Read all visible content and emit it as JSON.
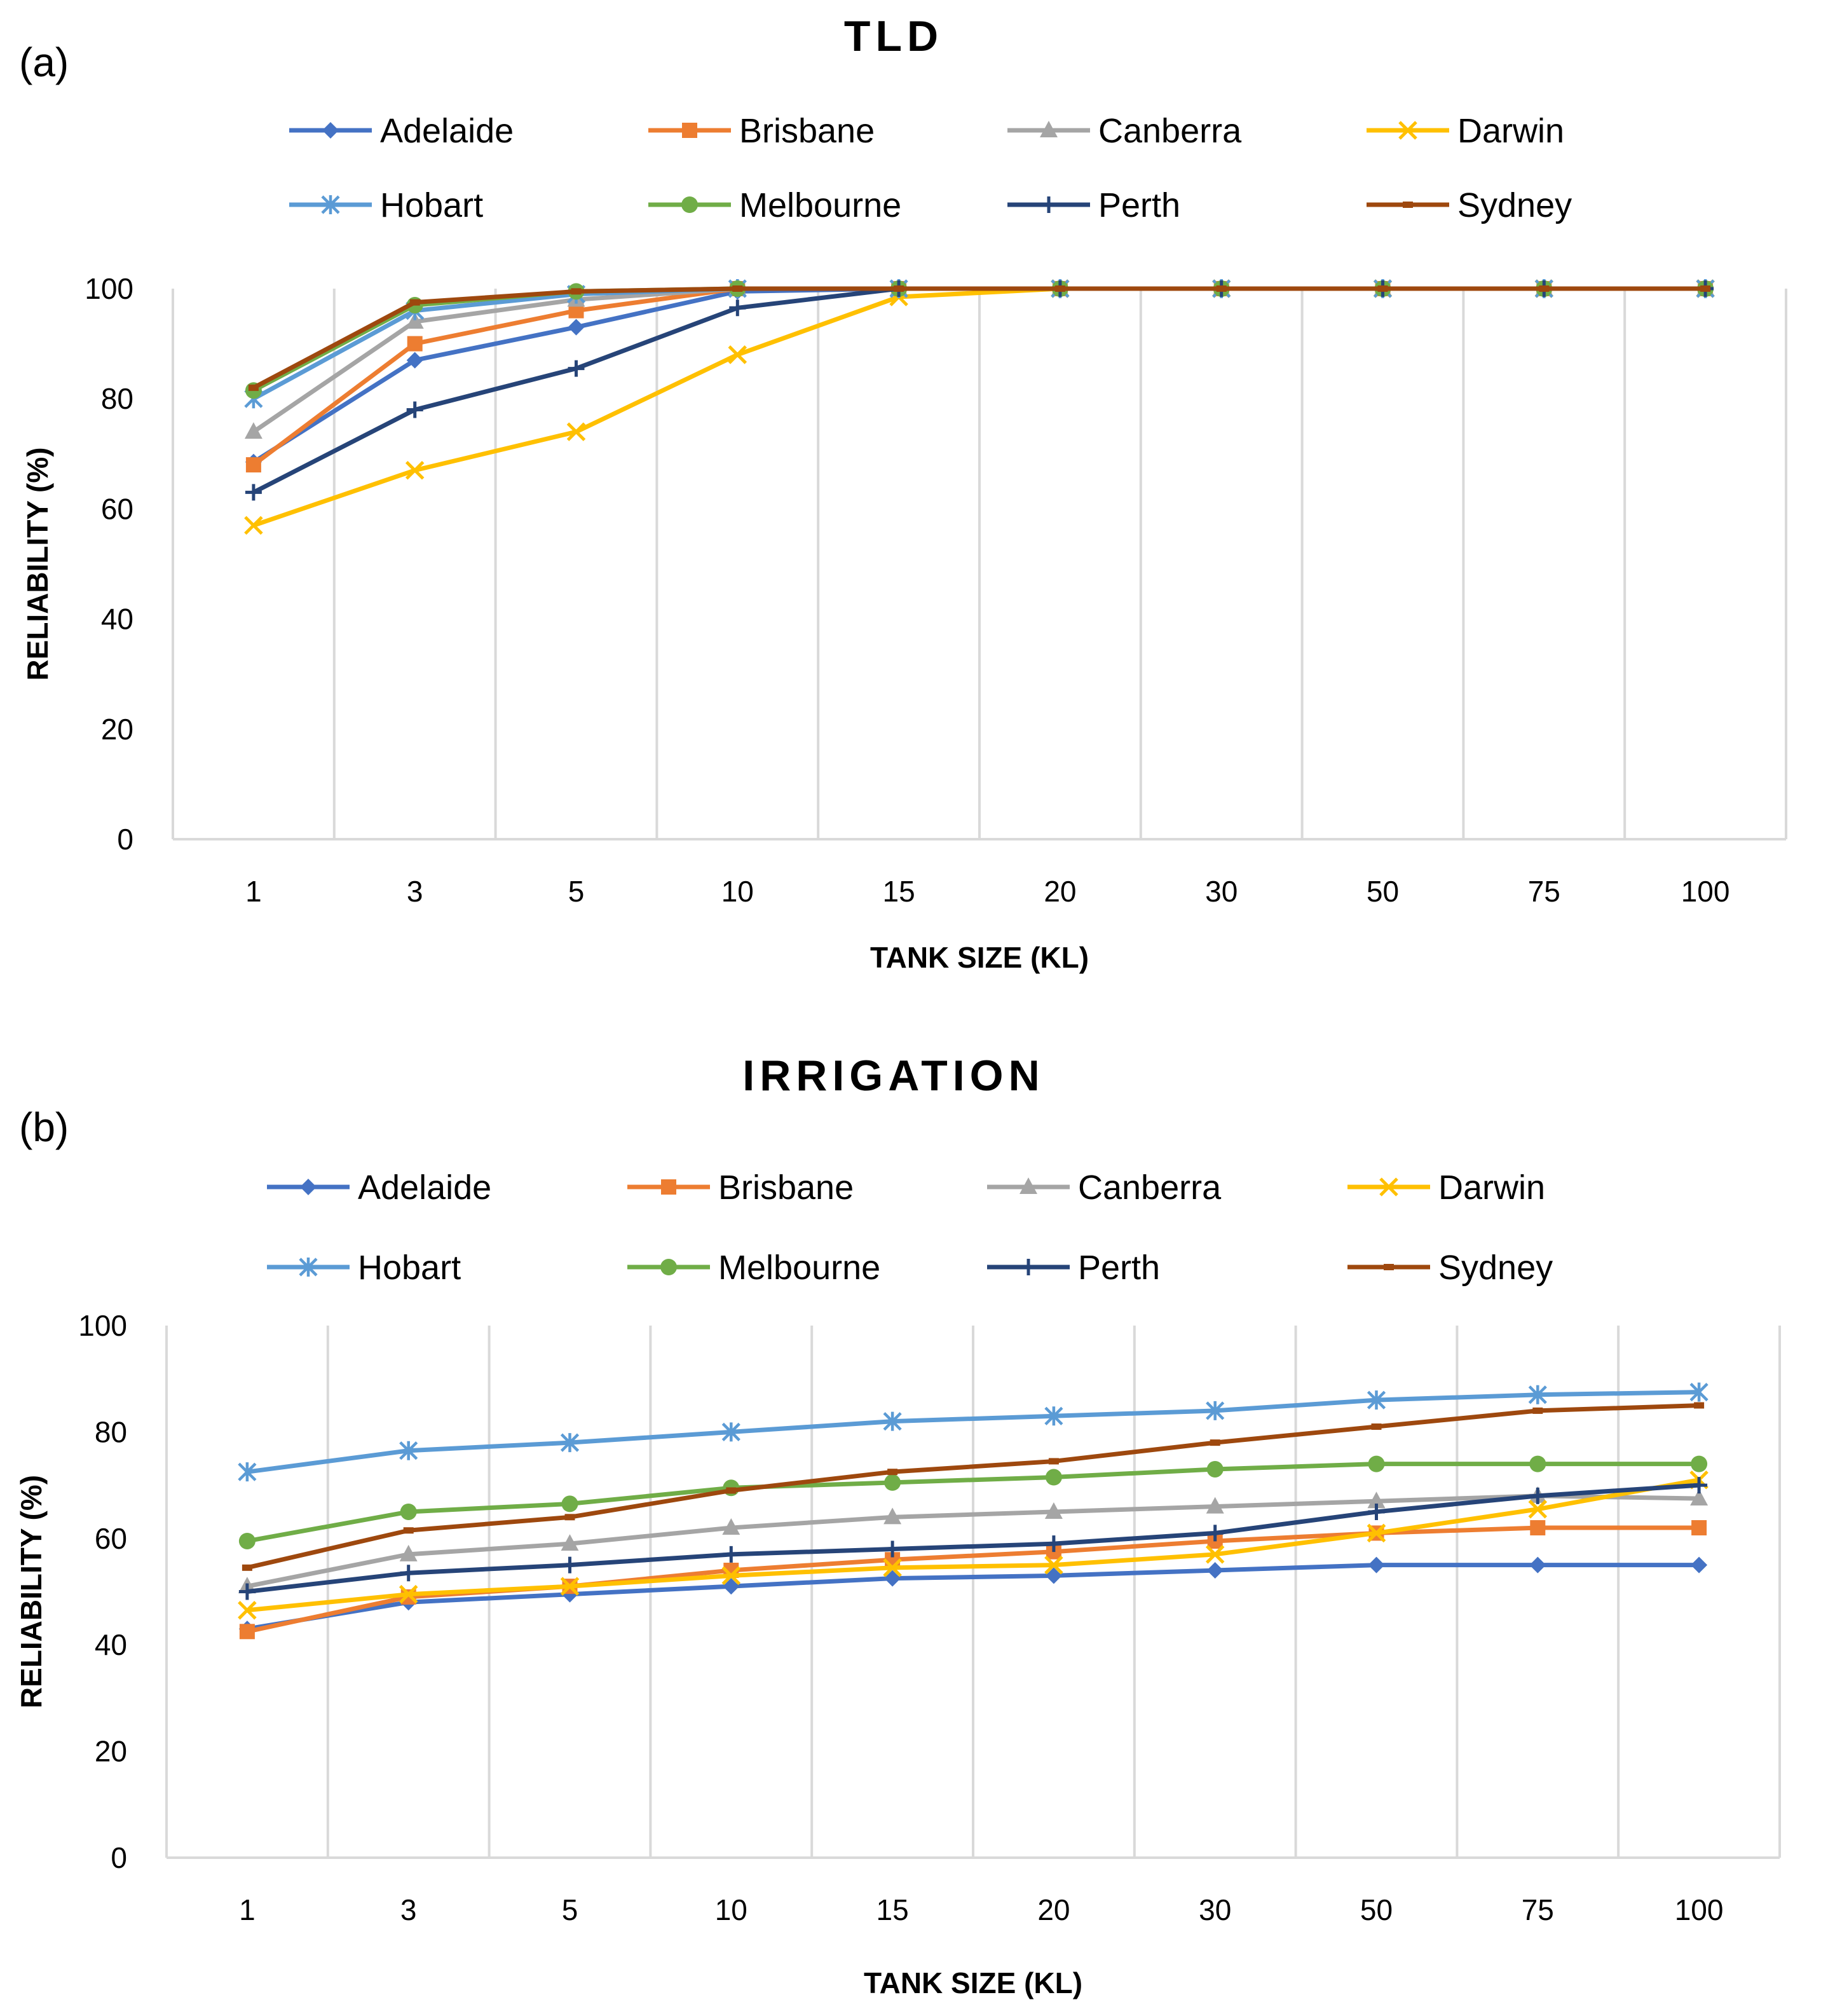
{
  "chart_data": [
    {
      "panel": "(a)",
      "type": "line",
      "title": "TLD",
      "xlabel": "TANK SIZE (KL)",
      "ylabel": "RELIABILITY (%)",
      "ylim": [
        0,
        100
      ],
      "yticks": [
        "0",
        "20",
        "40",
        "60",
        "80",
        "100"
      ],
      "categories": [
        "1",
        "3",
        "5",
        "10",
        "15",
        "20",
        "30",
        "50",
        "75",
        "100"
      ],
      "series": [
        {
          "name": "Adelaide",
          "color": "#4472C4",
          "marker": "diamond",
          "values": [
            68.5,
            87,
            93,
            99.5,
            100,
            100,
            100,
            100,
            100,
            100
          ]
        },
        {
          "name": "Brisbane",
          "color": "#ED7D31",
          "marker": "square",
          "values": [
            68,
            90,
            96,
            100,
            100,
            100,
            100,
            100,
            100,
            100
          ]
        },
        {
          "name": "Canberra",
          "color": "#A5A5A5",
          "marker": "triangle",
          "values": [
            74,
            94,
            98,
            100,
            100,
            100,
            100,
            100,
            100,
            100
          ]
        },
        {
          "name": "Darwin",
          "color": "#FFC000",
          "marker": "x",
          "values": [
            57,
            67,
            74,
            88,
            98.5,
            100,
            100,
            100,
            100,
            100
          ]
        },
        {
          "name": "Hobart",
          "color": "#5B9BD5",
          "marker": "star",
          "values": [
            80,
            96,
            99,
            100,
            100,
            100,
            100,
            100,
            100,
            100
          ]
        },
        {
          "name": "Melbourne",
          "color": "#70AD47",
          "marker": "circle",
          "values": [
            81.5,
            97,
            99.5,
            100,
            100,
            100,
            100,
            100,
            100,
            100
          ]
        },
        {
          "name": "Perth",
          "color": "#264478",
          "marker": "plus",
          "values": [
            63,
            78,
            85.5,
            96.5,
            100,
            100,
            100,
            100,
            100,
            100
          ]
        },
        {
          "name": "Sydney",
          "color": "#9E480E",
          "marker": "dash",
          "values": [
            82,
            97.5,
            99.5,
            100,
            100,
            100,
            100,
            100,
            100,
            100
          ]
        }
      ]
    },
    {
      "panel": "(b)",
      "type": "line",
      "title": "IRRIGATION",
      "xlabel": "TANK SIZE (KL)",
      "ylabel": "RELIABILITY (%)",
      "ylim": [
        0,
        100
      ],
      "yticks": [
        "0",
        "20",
        "40",
        "60",
        "80",
        "100"
      ],
      "categories": [
        "1",
        "3",
        "5",
        "10",
        "15",
        "20",
        "30",
        "50",
        "75",
        "100"
      ],
      "series": [
        {
          "name": "Adelaide",
          "color": "#4472C4",
          "marker": "diamond",
          "values": [
            43,
            48,
            49.5,
            51,
            52.5,
            53,
            54,
            55,
            55,
            55
          ]
        },
        {
          "name": "Brisbane",
          "color": "#ED7D31",
          "marker": "square",
          "values": [
            42.5,
            49,
            51,
            54,
            56,
            57.5,
            59.5,
            61,
            62,
            62
          ]
        },
        {
          "name": "Canberra",
          "color": "#A5A5A5",
          "marker": "triangle",
          "values": [
            51,
            57,
            59,
            62,
            64,
            65,
            66,
            67,
            68,
            67.5
          ]
        },
        {
          "name": "Darwin",
          "color": "#FFC000",
          "marker": "x",
          "values": [
            46.5,
            49.5,
            51,
            53,
            54.5,
            55,
            57,
            61,
            65.5,
            71
          ]
        },
        {
          "name": "Hobart",
          "color": "#5B9BD5",
          "marker": "star",
          "values": [
            72.5,
            76.5,
            78,
            80,
            82,
            83,
            84,
            86,
            87,
            87.5
          ]
        },
        {
          "name": "Melbourne",
          "color": "#70AD47",
          "marker": "circle",
          "values": [
            59.5,
            65,
            66.5,
            69.5,
            70.5,
            71.5,
            73,
            74,
            74,
            74
          ]
        },
        {
          "name": "Perth",
          "color": "#264478",
          "marker": "plus",
          "values": [
            50,
            53.5,
            55,
            57,
            58,
            59,
            61,
            65,
            68,
            70
          ]
        },
        {
          "name": "Sydney",
          "color": "#9E480E",
          "marker": "dash",
          "values": [
            54.5,
            61.5,
            64,
            69,
            72.5,
            74.5,
            78,
            81,
            84,
            85
          ]
        }
      ]
    }
  ]
}
